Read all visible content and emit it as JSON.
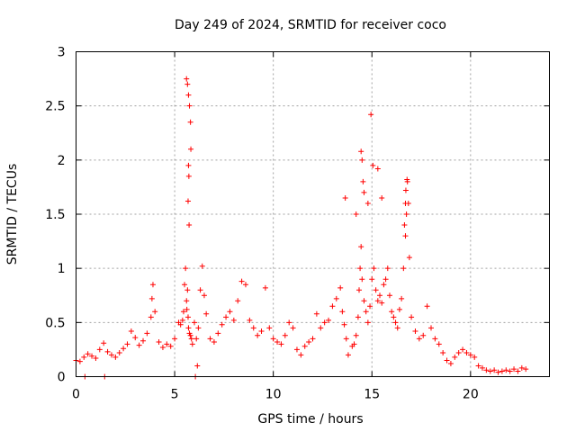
{
  "chart_data": {
    "type": "scatter",
    "title": "Day 249 of 2024, SRMTID for receiver coco",
    "xlabel": "GPS time / hours",
    "ylabel": "SRMTID / TECUs",
    "xlim": [
      0,
      24
    ],
    "ylim": [
      0,
      3
    ],
    "xticks": [
      0,
      5,
      10,
      15,
      20
    ],
    "xtick_labels": [
      "0",
      "5",
      "10",
      "15",
      "20"
    ],
    "yticks": [
      0,
      0.5,
      1,
      1.5,
      2,
      2.5,
      3
    ],
    "ytick_labels": [
      "0",
      "0.5",
      "1",
      "1.5",
      "2",
      "2.5",
      "3"
    ],
    "grid": true,
    "marker": "+",
    "marker_color": "#ff0000",
    "series": [
      {
        "name": "SRMTID",
        "x": [
          0.0,
          0.2,
          0.4,
          0.6,
          0.8,
          1.0,
          1.2,
          1.4,
          1.6,
          1.8,
          2.0,
          2.2,
          2.4,
          2.6,
          2.8,
          3.0,
          3.2,
          3.4,
          3.6,
          3.8,
          3.85,
          3.9,
          4.0,
          4.2,
          4.4,
          4.6,
          4.8,
          5.0,
          5.2,
          5.3,
          5.4,
          5.45,
          5.5,
          5.55,
          5.6,
          5.62,
          5.65,
          5.68,
          5.7,
          5.75,
          5.8,
          5.85,
          5.9,
          6.0,
          6.1,
          6.2,
          6.3,
          6.4,
          6.5,
          6.6,
          6.8,
          7.0,
          7.2,
          7.4,
          7.6,
          7.8,
          8.0,
          8.2,
          8.4,
          8.6,
          8.8,
          9.0,
          9.2,
          9.4,
          9.6,
          9.8,
          10.0,
          10.2,
          10.4,
          10.6,
          10.8,
          11.0,
          11.2,
          11.4,
          11.6,
          11.8,
          12.0,
          12.2,
          12.4,
          12.6,
          12.8,
          13.0,
          13.2,
          13.4,
          13.5,
          13.6,
          13.7,
          13.8,
          14.0,
          14.1,
          14.2,
          14.3,
          14.35,
          14.4,
          14.45,
          14.5,
          14.6,
          14.7,
          14.8,
          14.9,
          15.0,
          15.1,
          15.2,
          15.3,
          15.4,
          15.5,
          15.6,
          15.7,
          15.8,
          15.9,
          16.0,
          16.1,
          16.2,
          16.3,
          16.4,
          16.5,
          16.6,
          16.7,
          16.75,
          16.8,
          16.85,
          16.9,
          17.0,
          17.2,
          17.4,
          17.6,
          17.8,
          18.0,
          18.2,
          18.4,
          18.6,
          18.8,
          19.0,
          19.2,
          19.4,
          19.6,
          19.8,
          20.0,
          20.2,
          20.4,
          20.6,
          20.8,
          21.0,
          21.2,
          21.4,
          21.6,
          21.8,
          22.0,
          22.2,
          22.4,
          22.6,
          22.8,
          0.45,
          1.45,
          6.05,
          6.15,
          5.6,
          5.65,
          5.7,
          5.75,
          5.8,
          5.82,
          5.7,
          5.72,
          5.68,
          5.73,
          14.45,
          14.5,
          14.55,
          14.6,
          14.8,
          14.95,
          15.05,
          15.3,
          15.5,
          13.65,
          14.2,
          16.65,
          16.7,
          16.72,
          16.78
        ],
        "y": [
          0.15,
          0.14,
          0.18,
          0.21,
          0.19,
          0.17,
          0.25,
          0.31,
          0.23,
          0.2,
          0.18,
          0.22,
          0.26,
          0.3,
          0.42,
          0.36,
          0.29,
          0.33,
          0.4,
          0.55,
          0.72,
          0.85,
          0.6,
          0.32,
          0.27,
          0.3,
          0.28,
          0.35,
          0.5,
          0.48,
          0.52,
          0.6,
          0.85,
          1.0,
          0.7,
          0.62,
          0.8,
          0.55,
          0.45,
          0.4,
          0.38,
          0.35,
          0.3,
          0.5,
          0.35,
          0.45,
          0.8,
          1.02,
          0.75,
          0.58,
          0.35,
          0.32,
          0.4,
          0.48,
          0.55,
          0.6,
          0.52,
          0.7,
          0.88,
          0.85,
          0.52,
          0.45,
          0.38,
          0.42,
          0.82,
          0.45,
          0.35,
          0.32,
          0.3,
          0.38,
          0.5,
          0.45,
          0.25,
          0.2,
          0.28,
          0.32,
          0.35,
          0.58,
          0.45,
          0.5,
          0.52,
          0.65,
          0.72,
          0.82,
          0.6,
          0.48,
          0.35,
          0.2,
          0.28,
          0.3,
          0.38,
          0.55,
          0.8,
          1.0,
          1.2,
          0.9,
          0.7,
          0.6,
          0.5,
          0.65,
          0.9,
          1.0,
          0.8,
          0.7,
          0.75,
          0.68,
          0.85,
          0.9,
          1.0,
          0.75,
          0.6,
          0.55,
          0.5,
          0.45,
          0.62,
          0.72,
          1.0,
          1.3,
          1.5,
          1.8,
          1.6,
          1.1,
          0.55,
          0.42,
          0.35,
          0.38,
          0.65,
          0.45,
          0.35,
          0.3,
          0.22,
          0.15,
          0.12,
          0.18,
          0.22,
          0.25,
          0.22,
          0.2,
          0.18,
          0.1,
          0.08,
          0.06,
          0.05,
          0.06,
          0.04,
          0.05,
          0.06,
          0.05,
          0.07,
          0.05,
          0.08,
          0.07,
          0.0,
          0.0,
          0.0,
          0.1,
          2.75,
          2.7,
          2.6,
          2.5,
          2.35,
          2.1,
          1.95,
          1.85,
          1.62,
          1.4,
          2.08,
          2.0,
          1.8,
          1.7,
          1.6,
          2.42,
          1.95,
          1.92,
          1.65,
          1.65,
          1.5,
          1.4,
          1.6,
          1.72,
          1.82
        ]
      }
    ]
  }
}
